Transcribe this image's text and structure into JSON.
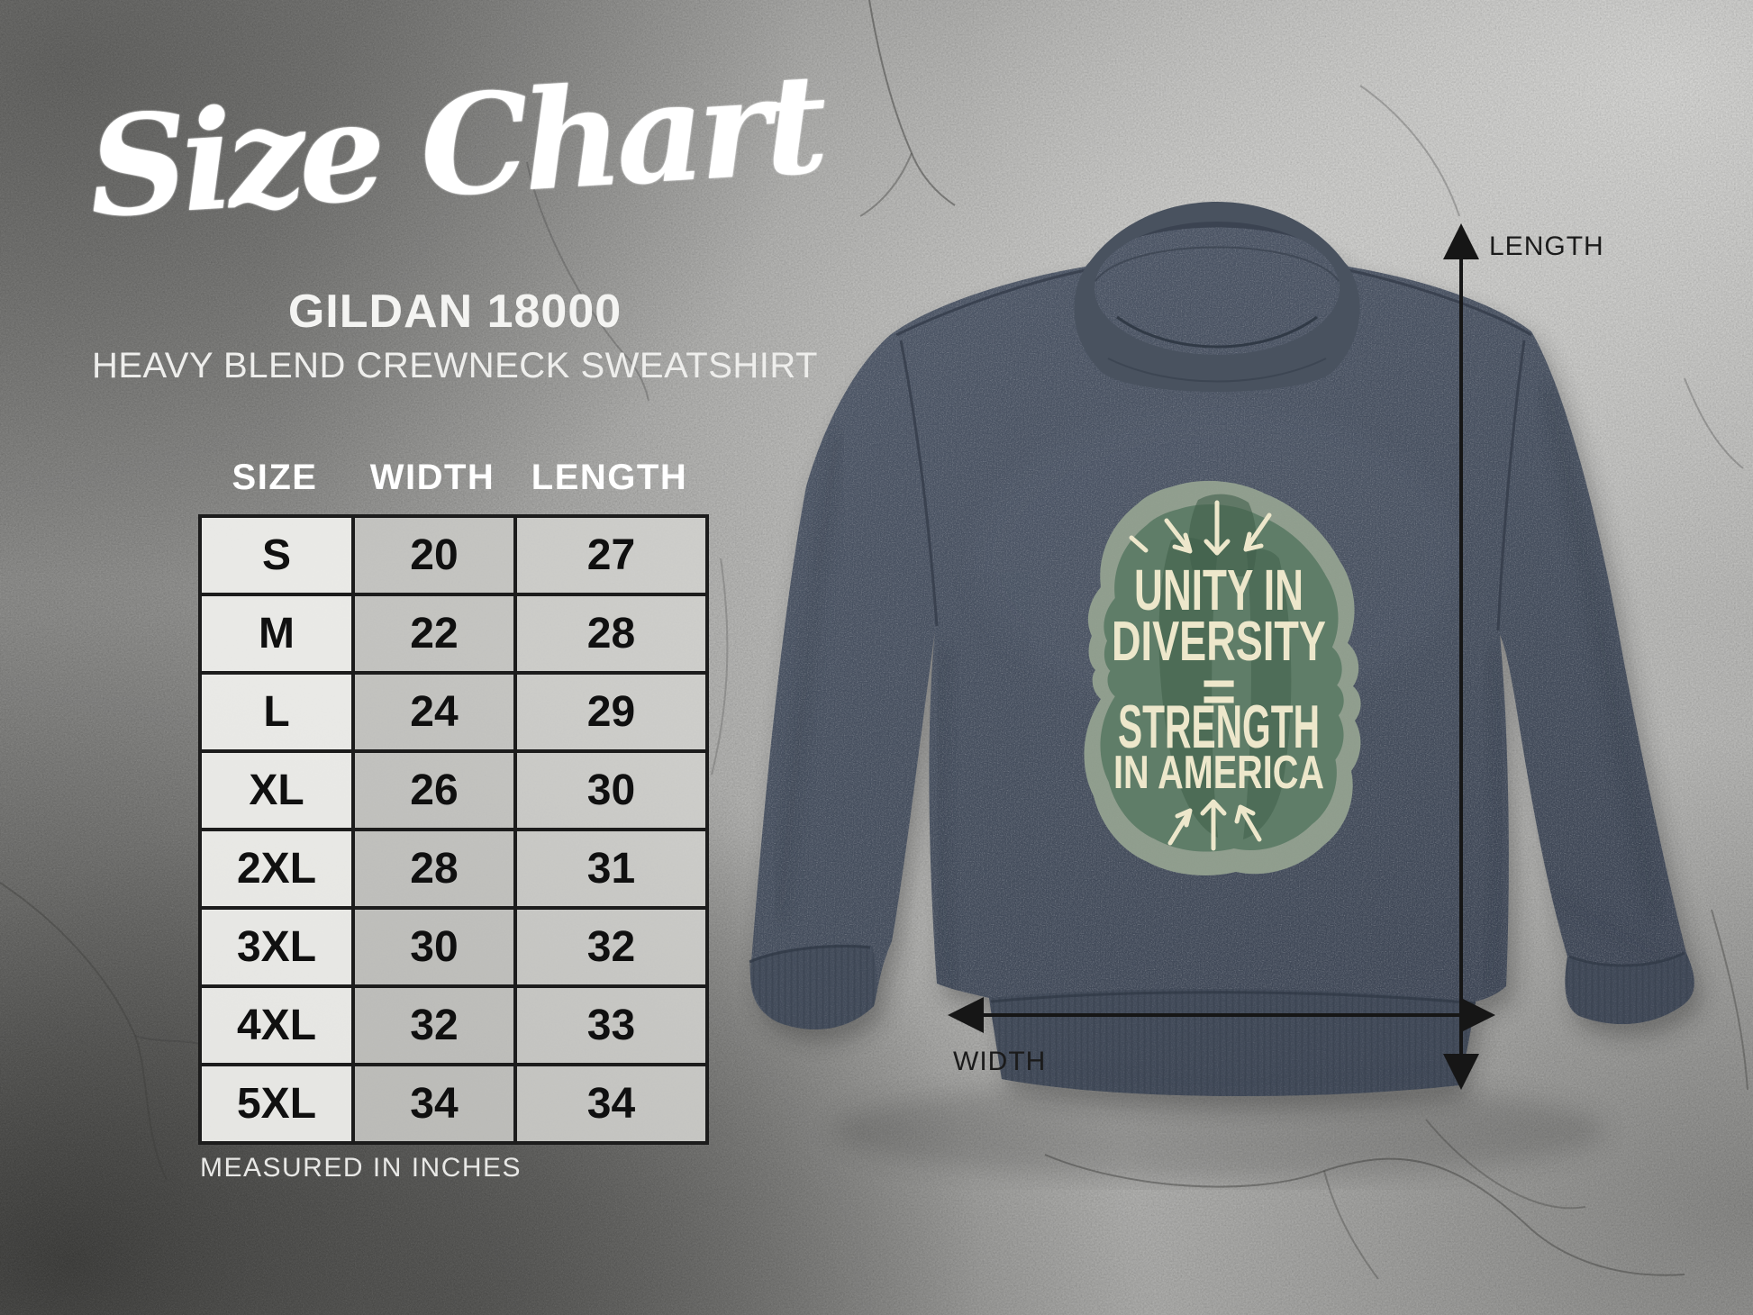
{
  "title": {
    "script": "Size Chart",
    "product": "GILDAN 18000",
    "subtitle": "HEAVY BLEND CREWNECK SWEATSHIRT"
  },
  "table": {
    "headers": [
      "SIZE",
      "WIDTH",
      "LENGTH"
    ],
    "rows": [
      [
        "S",
        "20",
        "27"
      ],
      [
        "M",
        "22",
        "28"
      ],
      [
        "L",
        "24",
        "29"
      ],
      [
        "XL",
        "26",
        "30"
      ],
      [
        "2XL",
        "28",
        "31"
      ],
      [
        "3XL",
        "30",
        "32"
      ],
      [
        "4XL",
        "32",
        "33"
      ],
      [
        "5XL",
        "34",
        "34"
      ]
    ],
    "footnote": "MEASURED IN INCHES"
  },
  "measurements": {
    "length_label": "LENGTH",
    "width_label": "WIDTH"
  },
  "print": {
    "line1": "UNITY IN",
    "line2": "DIVERSITY",
    "equals": "=",
    "line3": "STRENGTH",
    "line4": "IN AMERICA"
  },
  "colors": {
    "sweatshirt_navy": "#46505f",
    "sweatshirt_navy_dark": "#3a4250",
    "print_cream": "#ede7cb",
    "print_green_light": "#96a491",
    "print_green_mid": "#5f7d68",
    "print_green_deep": "#4a6954",
    "concrete_light": "#d2d2d0",
    "concrete_dark": "#3a3a38",
    "table_border": "#1c1c1c",
    "arrow_black": "#161616"
  },
  "chart_data": {
    "type": "table",
    "title": "Size Chart",
    "subtitle": "GILDAN 18000 HEAVY BLEND CREWNECK SWEATSHIRT",
    "units": "inches",
    "columns": [
      "SIZE",
      "WIDTH",
      "LENGTH"
    ],
    "rows": [
      [
        "S",
        20,
        27
      ],
      [
        "M",
        22,
        28
      ],
      [
        "L",
        24,
        29
      ],
      [
        "XL",
        26,
        30
      ],
      [
        "2XL",
        28,
        31
      ],
      [
        "3XL",
        30,
        32
      ],
      [
        "4XL",
        32,
        33
      ],
      [
        "5XL",
        34,
        34
      ]
    ],
    "note": "MEASURED IN INCHES"
  }
}
